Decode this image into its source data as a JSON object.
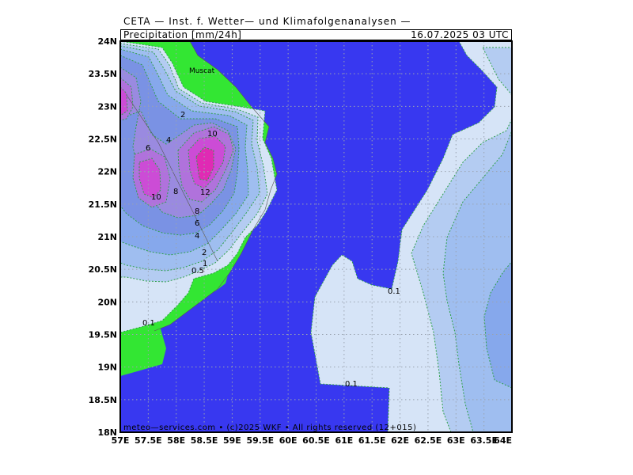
{
  "header": {
    "source_line": "CETA — Inst. f. Wetter— und Klimafolgenanalysen —",
    "product": "Precipitation [mm/24h]",
    "valid_time": "16.07.2025 03 UTC"
  },
  "footer": {
    "copyright": "meteo—services.com • (c)2025 WKF • All rights reserved (12+015)"
  },
  "map": {
    "lon_range": [
      57,
      64
    ],
    "lat_range": [
      18,
      24
    ],
    "x_ticks": [
      "57E",
      "57.5E",
      "58E",
      "58.5E",
      "59E",
      "59.5E",
      "60E",
      "60.5E",
      "61E",
      "61.5E",
      "62E",
      "62.5E",
      "63E",
      "63.5E",
      "64E"
    ],
    "y_ticks": [
      "24N",
      "23.5N",
      "23N",
      "22.5N",
      "22N",
      "21.5N",
      "21N",
      "20.5N",
      "20N",
      "19.5N",
      "19N",
      "18.5N",
      "18N"
    ],
    "city": "Muscat",
    "contour_labels": [
      "2",
      "10",
      "4",
      "6",
      "10",
      "8",
      "12",
      "8",
      "6",
      "4",
      "2",
      "1",
      "0.5",
      "0.1",
      "0.1",
      "0.1"
    ],
    "colors": {
      "sea": "#3838f0",
      "land": "#33e633",
      "level_0_1": "#d6e4f7",
      "level_0_5": "#b4ccf2",
      "level_1": "#9fbef0",
      "level_2": "#86a8ec",
      "level_4": "#7a92e4",
      "level_6": "#9a8ae0",
      "level_8": "#b072dc",
      "level_10": "#cc4cd6",
      "level_12": "#e02ab4"
    }
  }
}
